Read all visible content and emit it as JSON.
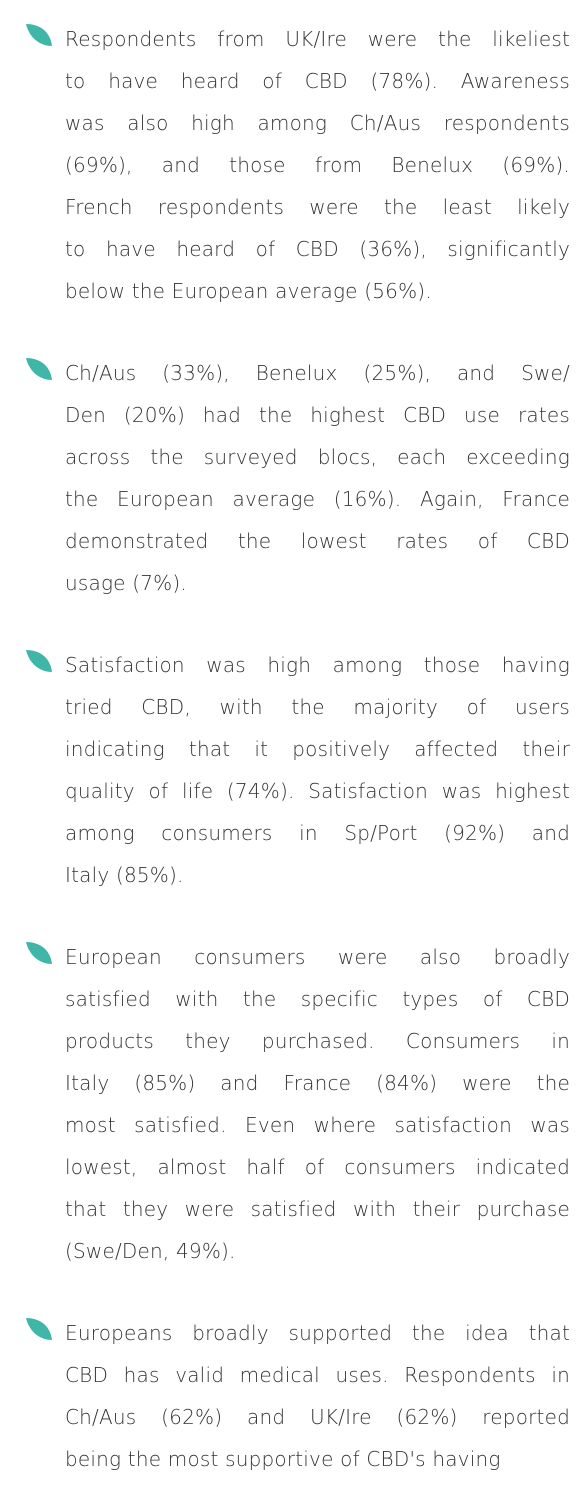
{
  "items": [
    {
      "lines": [
        "Respondents from UK/Ire were the likeliest",
        "to have heard of CBD (78%). Awareness",
        "was also high among Ch/Aus respondents",
        "(69%), and those from Benelux (69%).",
        "French respondents were the least likely",
        "to have heard of CBD (36%), significantly",
        "below the European average (56%)."
      ]
    },
    {
      "lines": [
        "Ch/Aus (33%), Benelux (25%), and Swe/",
        "Den (20%) had the highest CBD use rates",
        "across the surveyed blocs, each exceeding",
        "the European average (16%). Again, France",
        "demonstrated the lowest rates of CBD",
        "usage (7%)."
      ]
    },
    {
      "lines": [
        "Satisfaction was high among those having",
        "tried CBD, with the majority of users",
        "indicating that it positively affected their",
        "quality of life (74%). Satisfaction was highest",
        "among consumers in Sp/Port (92%) and",
        "Italy (85%)."
      ]
    },
    {
      "lines": [
        "European consumers were also broadly",
        "satisfied with the specific types of CBD",
        "products they purchased. Consumers in",
        "Italy (85%) and France (84%) were the",
        "most satisfied. Even where satisfaction was",
        "lowest, almost half of consumers indicated",
        "that they were satisfied with their purchase",
        "(Swe/Den, 49%)."
      ]
    },
    {
      "lines": [
        "Europeans broadly supported the idea that",
        "CBD has valid medical uses. Respondents in",
        "Ch/Aus (62%) and UK/Ire (62%) reported",
        "being the most supportive of CBD's having"
      ]
    }
  ]
}
